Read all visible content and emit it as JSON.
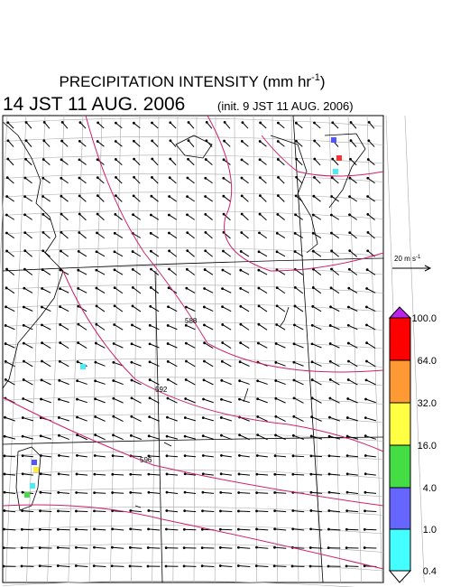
{
  "header": {
    "title": "PRECIPITATION INTENSITY (mm hr",
    "title_exp": "-1",
    "title_end": ")",
    "time": "14 JST 11 AUG. 2006",
    "init": "(init. 9 JST 11 AUG. 2006)"
  },
  "scale": {
    "label": "20 m s",
    "exp": "-1"
  },
  "colorbar": {
    "labels": [
      "100.0",
      "64.0",
      "32.0",
      "16.0",
      "4.0",
      "1.0",
      "0.4"
    ]
  },
  "contours": {
    "labels": [
      "588",
      "592",
      "596"
    ]
  }
}
